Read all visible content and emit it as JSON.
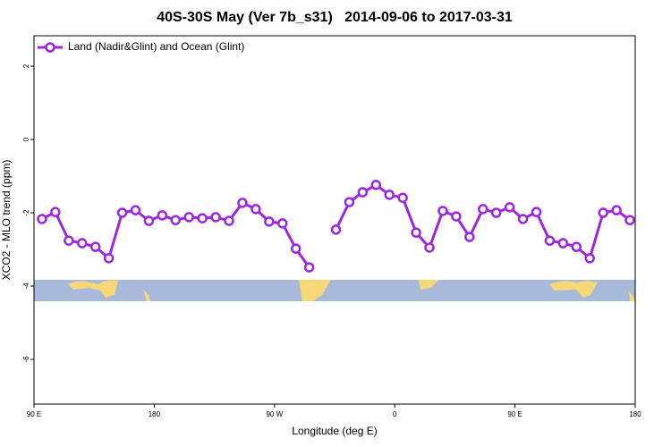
{
  "chart_data": {
    "type": "line",
    "title": "40S-30S May (Ver 7b_s31)   2014-09-06 to 2017-03-31",
    "xlabel": "Longitude (deg E)",
    "ylabel": "XCO2 - MLO trend (ppm)",
    "x": [
      96,
      106,
      116,
      126,
      136,
      146,
      156,
      166,
      176,
      186,
      196,
      206,
      216,
      226,
      236,
      246,
      256,
      266,
      276,
      286,
      296,
      306,
      316,
      326,
      336,
      346,
      356,
      366,
      376,
      386,
      396,
      406,
      416,
      426,
      436,
      446,
      456,
      466,
      476,
      486,
      496,
      506,
      516,
      526,
      536
    ],
    "series": [
      {
        "name": "Land (Nadir&Glint) and Ocean (Glint)",
        "color": "#9b27e0",
        "values": [
          -2.17,
          -1.98,
          -2.76,
          -2.83,
          -2.93,
          -3.24,
          -2.0,
          -1.93,
          -2.22,
          -2.07,
          -2.2,
          -2.12,
          -2.15,
          -2.12,
          -2.22,
          -1.73,
          -1.9,
          -2.24,
          -2.29,
          -2.98,
          -3.49,
          null,
          -2.46,
          -1.71,
          -1.44,
          -1.24,
          -1.51,
          -1.59,
          -2.54,
          -2.95,
          -1.95,
          -2.1,
          -2.66,
          -1.9,
          -2.0,
          -1.85,
          -2.17,
          -1.98,
          -2.76,
          -2.83,
          -2.93,
          -3.24,
          -2.0,
          -1.93,
          -2.2
        ]
      }
    ],
    "xlim": [
      90,
      540
    ],
    "xticks": [
      {
        "value": 90,
        "label": "90 E"
      },
      180,
      {
        "value": 270,
        "label": "90 W"
      },
      {
        "value": 360,
        "label": "0"
      },
      {
        "value": 450,
        "label": "90 E"
      },
      {
        "value": 540,
        "label": "180"
      }
    ],
    "ylim": [
      2.83,
      -7.22
    ],
    "yticks": [
      2,
      0,
      -2,
      -4,
      -6
    ],
    "legend": "top-left"
  }
}
